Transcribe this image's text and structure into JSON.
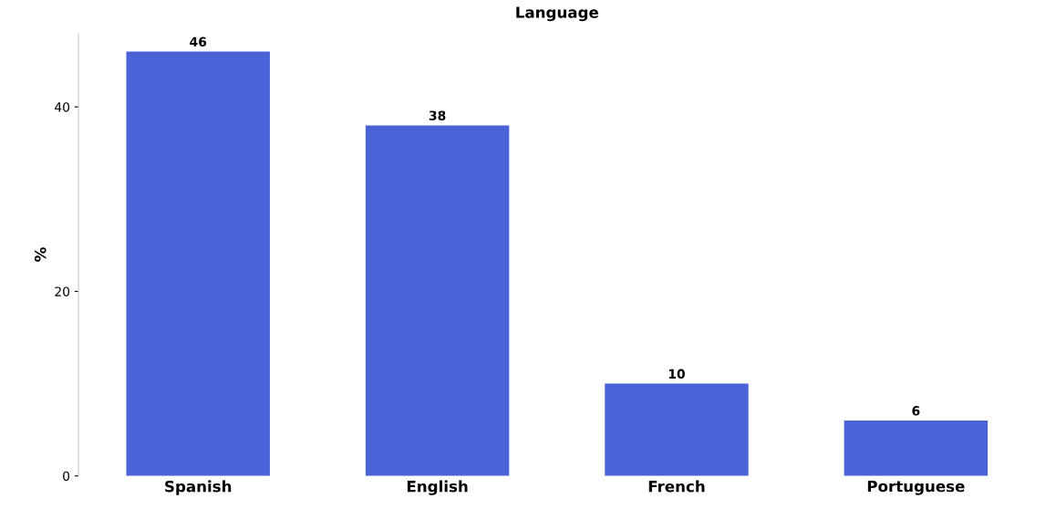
{
  "chart_data": {
    "type": "bar",
    "title": "Language",
    "ylabel": "%",
    "categories": [
      "Spanish",
      "English",
      "French",
      "Portuguese"
    ],
    "values": [
      46,
      38,
      10,
      6
    ],
    "color": "#4a64d8",
    "ylim": [
      0,
      48
    ],
    "yticks": [
      0,
      20,
      40
    ],
    "data_labels": true,
    "grid": false,
    "legend": false
  }
}
